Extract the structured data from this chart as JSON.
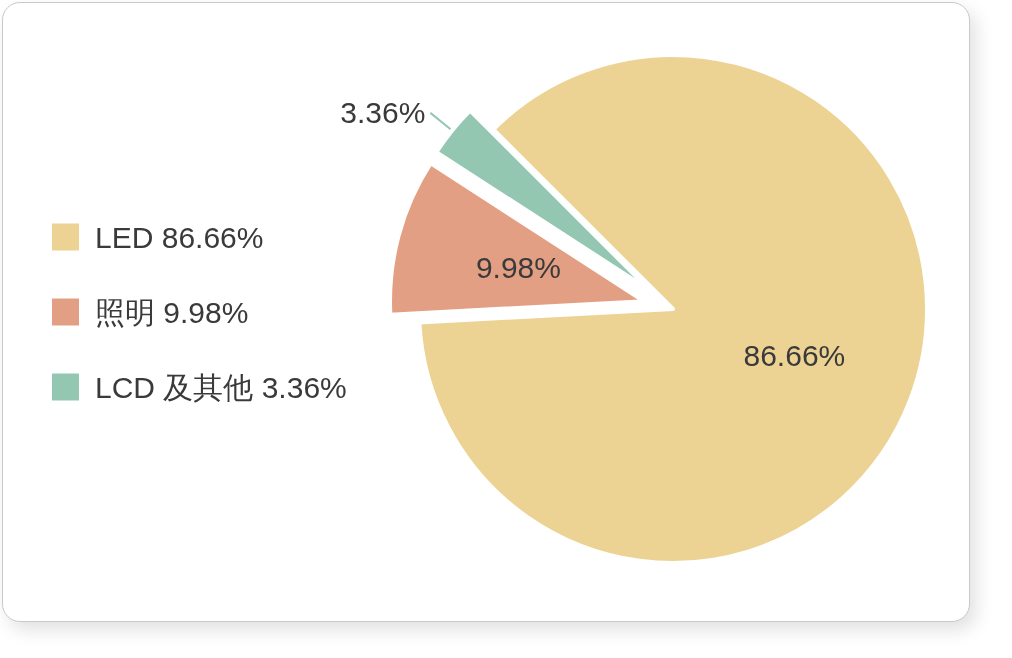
{
  "chart_data": {
    "type": "pie",
    "categories": [
      "LED",
      "照明",
      "LCD 及其他"
    ],
    "values": [
      86.66,
      9.98,
      3.36
    ],
    "colors": [
      "#edd393",
      "#e39f83",
      "#94c7b2"
    ],
    "value_labels": [
      "86.66%",
      "9.98%",
      "3.36%"
    ],
    "legend": "left"
  }
}
